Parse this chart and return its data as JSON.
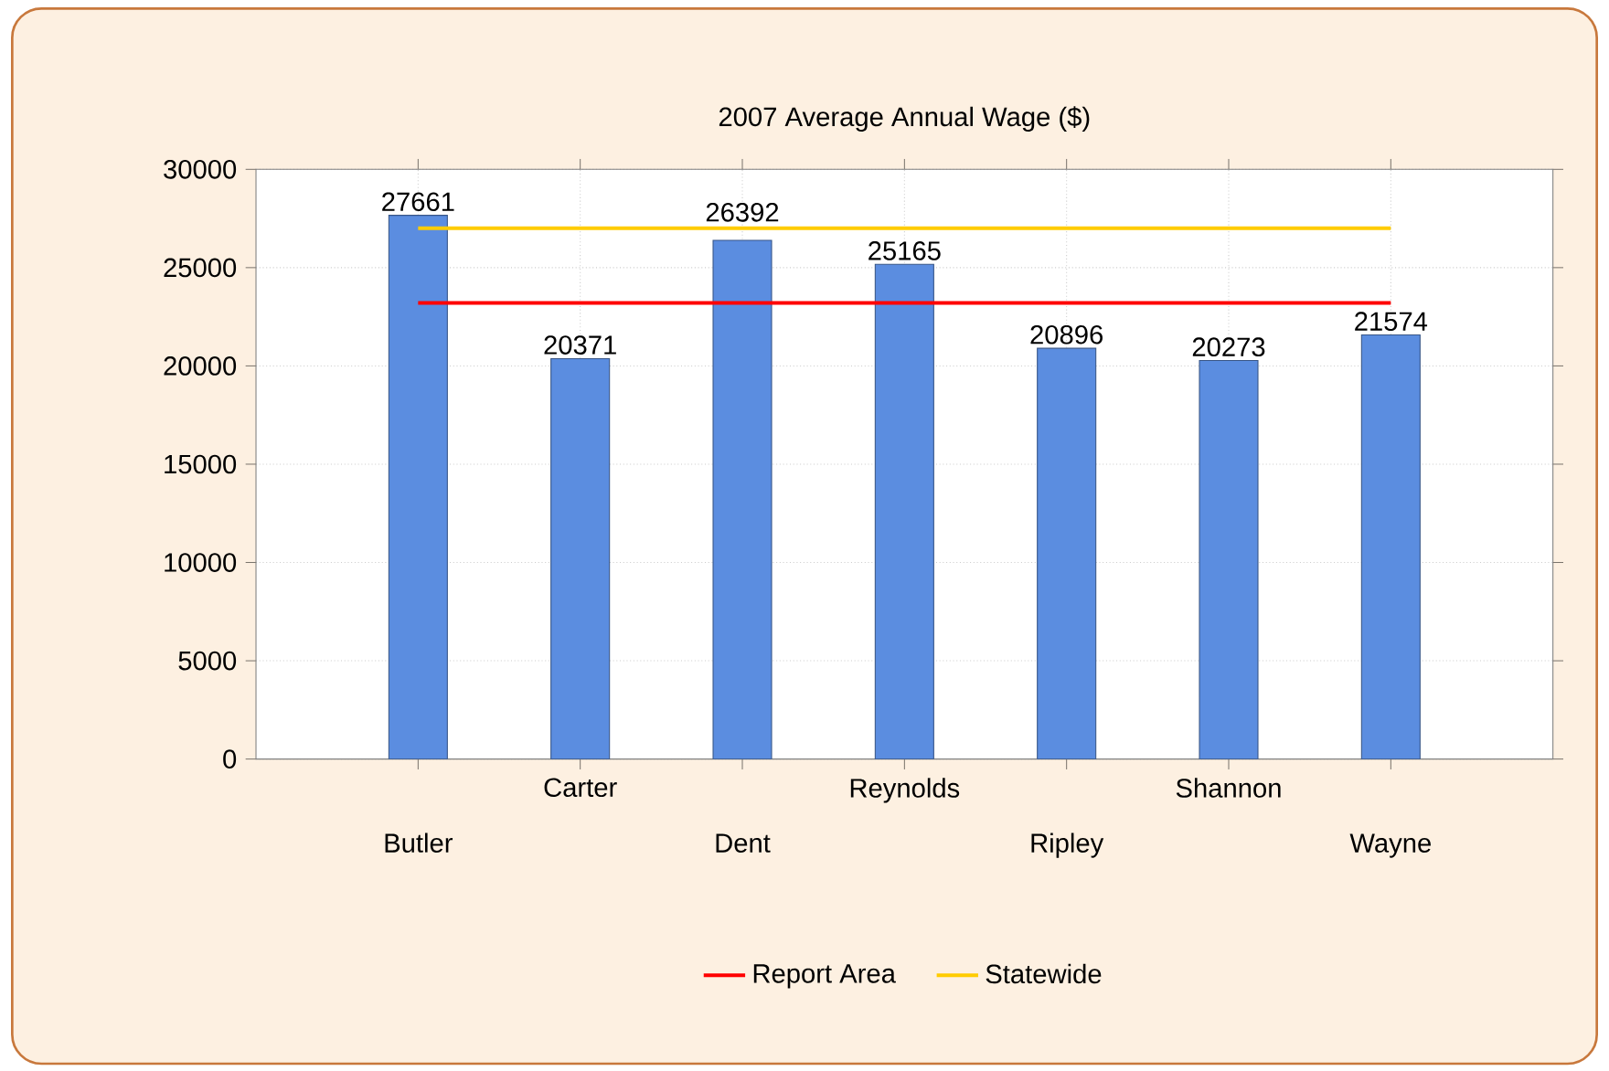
{
  "chart_data": {
    "type": "bar",
    "title": "2007 Average Annual Wage ($)",
    "categories": [
      "Butler",
      "Carter",
      "Dent",
      "Reynolds",
      "Ripley",
      "Shannon",
      "Wayne"
    ],
    "series": [
      {
        "color": "#5b8de0",
        "values": [
          27661,
          20371,
          26392,
          25165,
          20896,
          20273,
          21574
        ],
        "value_labels": [
          "27661",
          "20371",
          "26392",
          "25165",
          "20896",
          "20273",
          "21574"
        ]
      },
      {
        "type": "line",
        "name": "Report Area",
        "color": "#ff0000",
        "values": [
          23200,
          23200,
          23200,
          23200,
          23200,
          23200,
          23200
        ]
      },
      {
        "type": "line",
        "name": "Statewide",
        "color": "#ffcc00",
        "values": [
          27000,
          27000,
          27000,
          27000,
          27000,
          27000,
          27000
        ]
      }
    ],
    "ylim": [
      0,
      30000
    ],
    "yticks": [
      0,
      5000,
      10000,
      15000,
      20000,
      25000,
      30000
    ],
    "grid": true,
    "legend": "bottom",
    "marker": "none",
    "line_style": "solid"
  }
}
